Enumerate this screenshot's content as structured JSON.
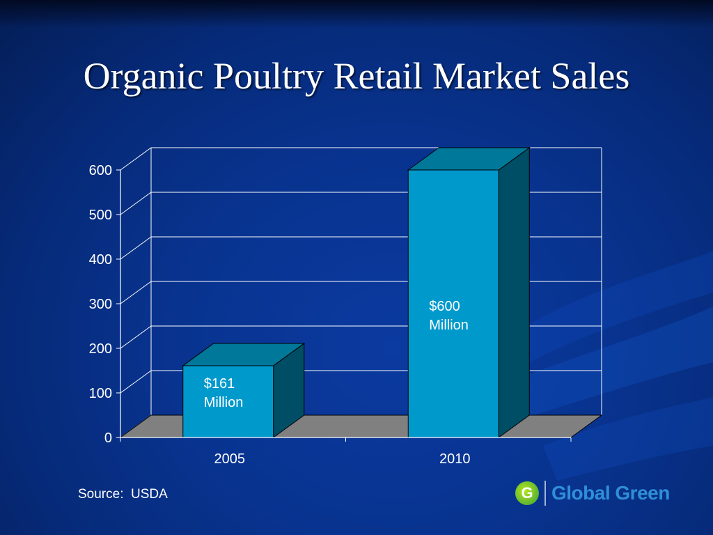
{
  "slide": {
    "title": "Organic Poultry Retail Market Sales",
    "source": "Source:  USDA",
    "logo_text": "Global Green",
    "logo_letter": "G"
  },
  "colors": {
    "bar_front": "#0099cc",
    "bar_top": "#00789a",
    "bar_side": "#004d66",
    "floor": "#808080",
    "text": "#ffffff"
  },
  "chart_data": {
    "type": "bar",
    "title": "",
    "xlabel": "",
    "ylabel": "",
    "categories": [
      "2005",
      "2010"
    ],
    "values": [
      161,
      600
    ],
    "data_labels": [
      [
        "$161",
        "Million"
      ],
      [
        "$600",
        "Million"
      ]
    ],
    "ylim": [
      0,
      600
    ],
    "yticks": [
      0,
      100,
      200,
      300,
      400,
      500,
      600
    ],
    "grid": true,
    "style": "3d"
  }
}
